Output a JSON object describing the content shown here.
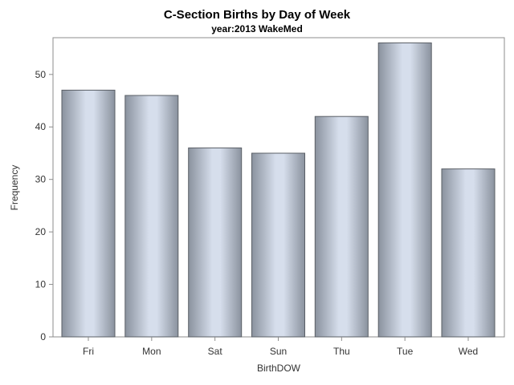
{
  "chart_data": {
    "type": "bar",
    "title": "C-Section Births by Day of Week",
    "subtitle": "year:2013 WakeMed",
    "xlabel": "BirthDOW",
    "ylabel": "Frequency",
    "categories": [
      "Fri",
      "Mon",
      "Sat",
      "Sun",
      "Thu",
      "Tue",
      "Wed"
    ],
    "values": [
      47,
      46,
      36,
      35,
      42,
      56,
      32
    ],
    "ylim": [
      0,
      57
    ],
    "yticks": [
      0,
      10,
      20,
      30,
      40,
      50
    ],
    "grid": false,
    "legend": "none"
  },
  "colors": {
    "bar_edge": "#5a5f66",
    "bar_center": "#d6deec",
    "bar_side": "#8a929e",
    "frame": "#8c8c8c"
  }
}
